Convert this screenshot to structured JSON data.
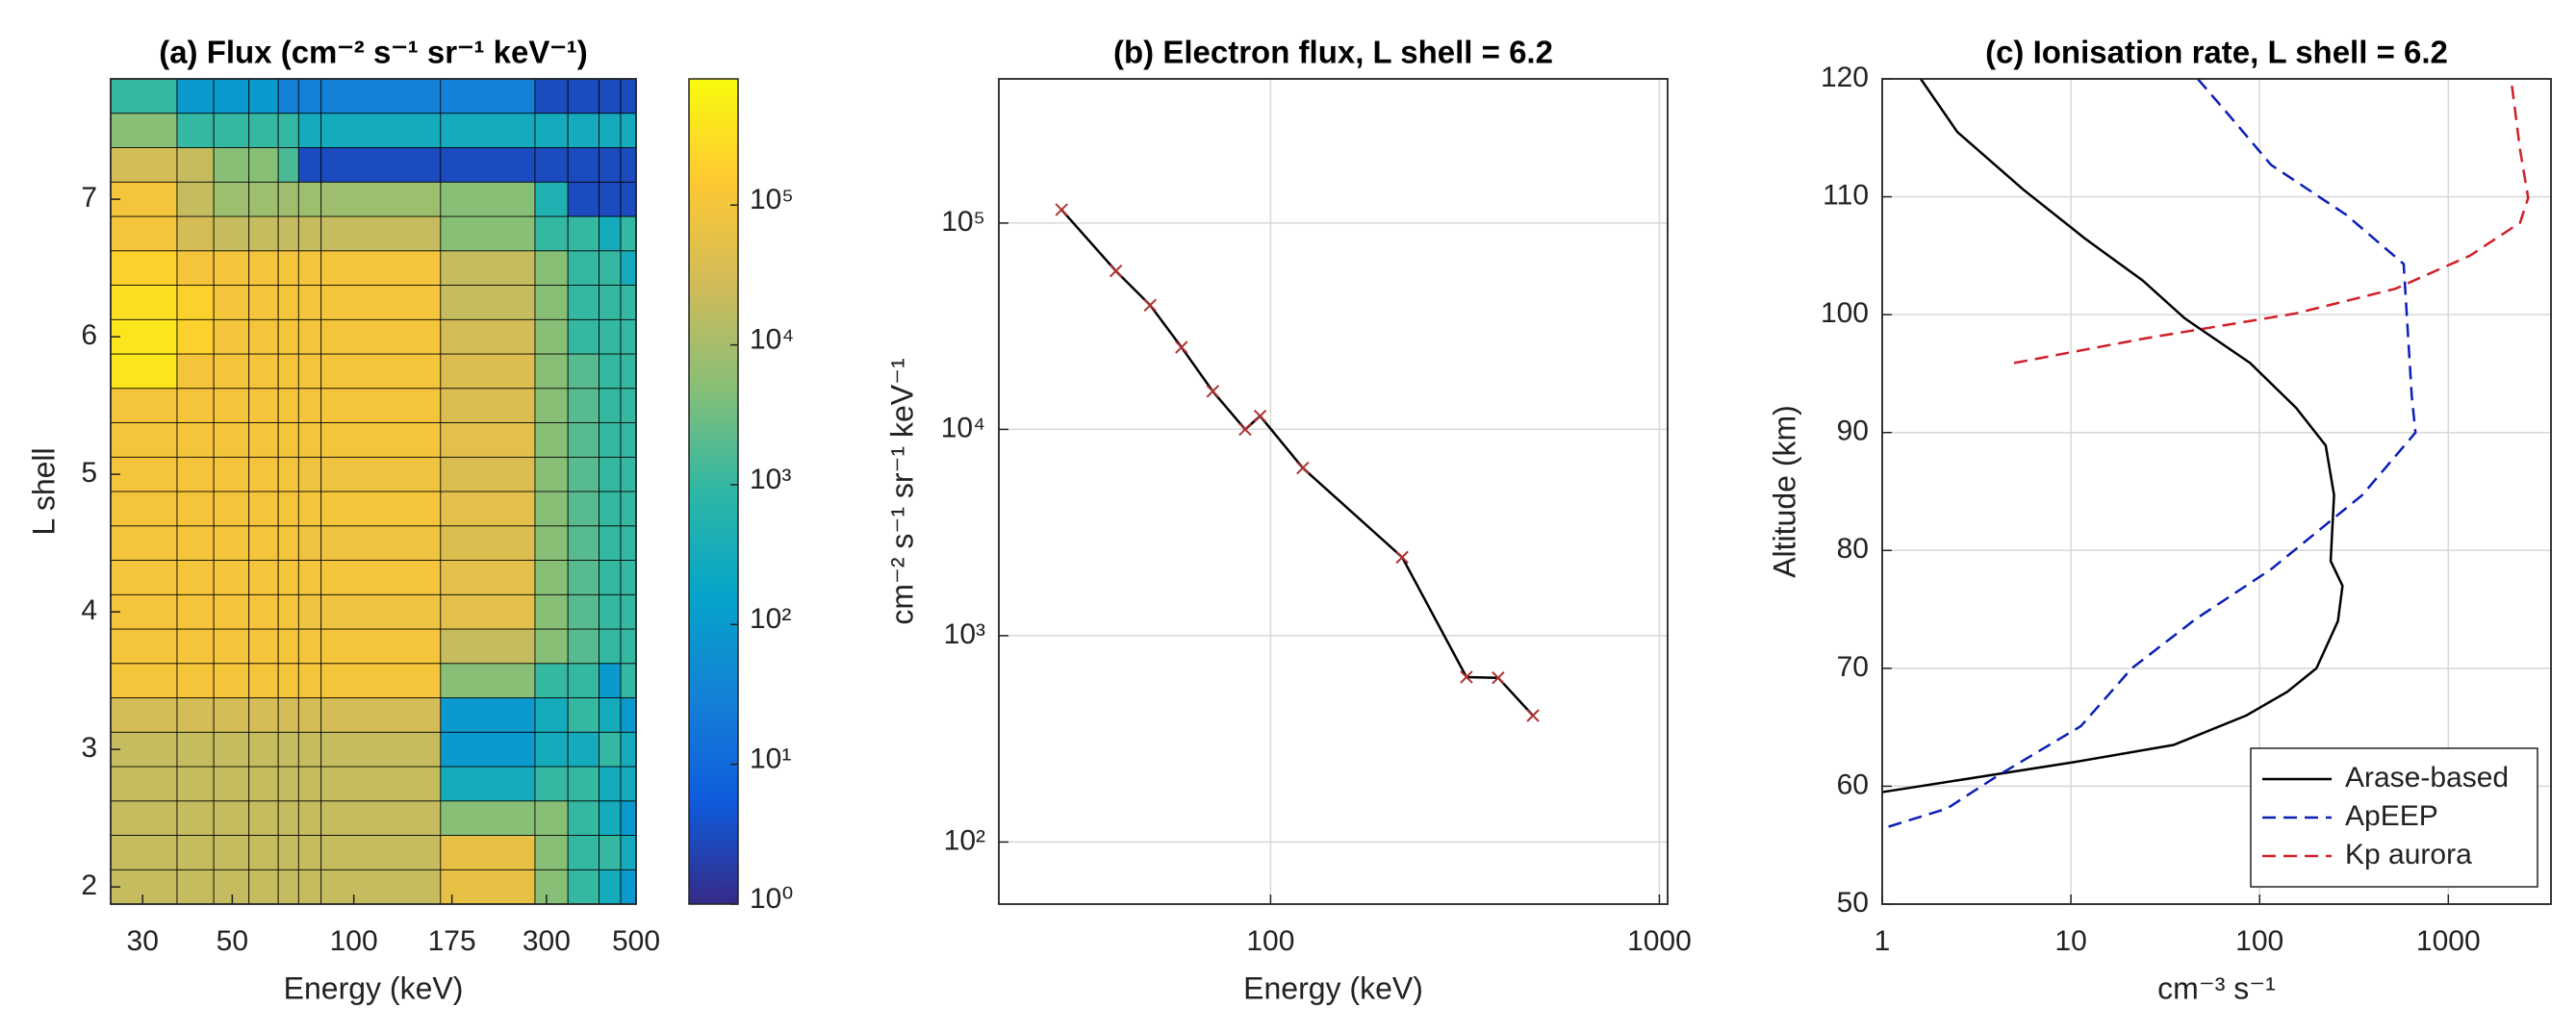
{
  "chart_data": [
    {
      "type": "heatmap",
      "title": "(a) Flux (cm⁻² s⁻¹ sr⁻¹ keV⁻¹)",
      "xlabel": "Energy (keV)",
      "ylabel": "L shell",
      "xscale": "log",
      "xlim": [
        25,
        500
      ],
      "xticks": [
        30,
        50,
        100,
        175,
        300,
        500
      ],
      "ylim": [
        1.875,
        7.875
      ],
      "yticks": [
        2,
        3,
        4,
        5,
        6,
        7
      ],
      "grid": false,
      "x_edges": [
        25,
        36.5,
        45,
        55,
        65,
        73,
        83,
        164,
        281,
        339,
        405,
        458,
        500
      ],
      "y_edges": [
        1.875,
        2.125,
        2.375,
        2.625,
        2.875,
        3.125,
        3.375,
        3.625,
        3.875,
        4.125,
        4.375,
        4.625,
        4.875,
        5.125,
        5.375,
        5.625,
        5.875,
        6.125,
        6.375,
        6.625,
        6.875,
        7.125,
        7.375,
        7.625,
        7.875
      ],
      "colormap": "parula",
      "cscale": "log",
      "clim": [
        1,
        800000
      ],
      "cticks": [
        {
          "value": 1,
          "label": "10⁰"
        },
        {
          "value": 10,
          "label": "10¹"
        },
        {
          "value": 100,
          "label": "10²"
        },
        {
          "value": 1000,
          "label": "10³"
        },
        {
          "value": 10000,
          "label": "10⁴"
        },
        {
          "value": 100000,
          "label": "10⁵"
        }
      ],
      "values": [
        [
          20000,
          20000,
          20000,
          20000,
          20000,
          20000,
          20000,
          60000,
          5000,
          1000,
          300,
          100
        ],
        [
          20000,
          20000,
          20000,
          20000,
          20000,
          20000,
          20000,
          60000,
          5000,
          1000,
          1000,
          300
        ],
        [
          20000,
          20000,
          20000,
          20000,
          20000,
          20000,
          20000,
          5000,
          5000,
          1000,
          300,
          100
        ],
        [
          20000,
          20000,
          20000,
          20000,
          20000,
          20000,
          20000,
          300,
          1000,
          1000,
          300,
          300
        ],
        [
          20000,
          20000,
          20000,
          20000,
          20000,
          20000,
          20000,
          100,
          300,
          300,
          1000,
          300
        ],
        [
          30000,
          30000,
          30000,
          30000,
          30000,
          30000,
          30000,
          100,
          300,
          1000,
          300,
          100
        ],
        [
          100000,
          100000,
          100000,
          100000,
          100000,
          100000,
          100000,
          5000,
          1000,
          1000,
          100,
          1000
        ],
        [
          100000,
          100000,
          100000,
          100000,
          100000,
          100000,
          100000,
          20000,
          5000,
          2000,
          1000,
          1000
        ],
        [
          100000,
          100000,
          100000,
          100000,
          100000,
          80000,
          80000,
          50000,
          5000,
          2000,
          1000,
          1000
        ],
        [
          100000,
          100000,
          100000,
          100000,
          100000,
          100000,
          100000,
          50000,
          5000,
          2000,
          1000,
          1000
        ],
        [
          100000,
          100000,
          100000,
          100000,
          100000,
          80000,
          80000,
          40000,
          5000,
          2000,
          1000,
          1000
        ],
        [
          100000,
          100000,
          100000,
          100000,
          100000,
          100000,
          100000,
          50000,
          5000,
          2000,
          1000,
          1000
        ],
        [
          100000,
          100000,
          100000,
          100000,
          100000,
          80000,
          80000,
          40000,
          5000,
          2000,
          1000,
          1000
        ],
        [
          100000,
          100000,
          100000,
          100000,
          100000,
          100000,
          100000,
          50000,
          5000,
          2000,
          1000,
          1000
        ],
        [
          100000,
          100000,
          100000,
          100000,
          100000,
          100000,
          100000,
          40000,
          5000,
          2000,
          1000,
          1000
        ],
        [
          400000,
          100000,
          100000,
          100000,
          100000,
          100000,
          100000,
          40000,
          5000,
          2000,
          1000,
          1000
        ],
        [
          400000,
          200000,
          100000,
          100000,
          100000,
          100000,
          100000,
          30000,
          5000,
          1000,
          1000,
          1000
        ],
        [
          300000,
          200000,
          100000,
          100000,
          100000,
          100000,
          100000,
          20000,
          5000,
          1000,
          1000,
          1000
        ],
        [
          200000,
          100000,
          100000,
          100000,
          100000,
          100000,
          100000,
          20000,
          5000,
          1000,
          1000,
          300
        ],
        [
          100000,
          30000,
          20000,
          20000,
          20000,
          20000,
          20000,
          5000,
          1000,
          1000,
          300,
          1000
        ],
        [
          100000,
          20000,
          8000,
          8000,
          8000,
          8000,
          8000,
          5000,
          500,
          3,
          3,
          3
        ],
        [
          30000,
          20000,
          5000,
          5000,
          1500,
          3,
          3,
          3,
          3,
          3,
          3,
          3
        ],
        [
          5000,
          1000,
          1000,
          1000,
          1000,
          300,
          300,
          300,
          300,
          300,
          300,
          300
        ],
        [
          1000,
          100,
          100,
          100,
          30,
          30,
          30,
          30,
          3,
          3,
          3,
          3
        ]
      ]
    },
    {
      "type": "line",
      "title": "(b) Electron flux, L shell = 6.2",
      "xlabel": "Energy (keV)",
      "ylabel": "cm⁻² s⁻¹ sr⁻¹ keV⁻¹",
      "xscale": "log",
      "yscale": "log",
      "xlim": [
        20,
        1050
      ],
      "ylim": [
        50,
        500000
      ],
      "grid": true,
      "xticks": [
        100,
        1000
      ],
      "yticks": [
        {
          "value": 100,
          "label": "10²"
        },
        {
          "value": 1000,
          "label": "10³"
        },
        {
          "value": 10000,
          "label": "10⁴"
        },
        {
          "value": 100000,
          "label": "10⁵"
        }
      ],
      "x": [
        29,
        40,
        49,
        59,
        71,
        86,
        94,
        121,
        218,
        319,
        385,
        473
      ],
      "series": [
        {
          "color": "#000000",
          "marker": "x",
          "marker_color": "#b03030",
          "values": [
            116000,
            58600,
            40000,
            25000,
            15300,
            10000,
            11600,
            6500,
            2400,
            630,
            625,
            410
          ]
        }
      ]
    },
    {
      "type": "line",
      "title": "(c) Ionisation rate, L shell = 6.2",
      "xlabel": "cm⁻³ s⁻¹",
      "ylabel": "Altitude (km)",
      "xscale": "log",
      "xlim": [
        1,
        3500
      ],
      "ylim": [
        50,
        120
      ],
      "grid": true,
      "legend": "lower right",
      "xticks": [
        1,
        10,
        100,
        1000
      ],
      "yticks": [
        50,
        60,
        70,
        80,
        90,
        100,
        110,
        120
      ],
      "series": [
        {
          "name": "Arase-based",
          "color": "#000000",
          "linestyle": "solid",
          "x": [
            1.6,
            2.5,
            5.6,
            12,
            24,
            40,
            89,
            156,
            224,
            248,
            238,
            275,
            260,
            200,
            140,
            85,
            35,
            10,
            1
          ],
          "values": [
            120,
            115.5,
            110.6,
            106.4,
            102.9,
            99.7,
            95.9,
            92.1,
            88.9,
            84.7,
            79.1,
            77,
            74,
            70,
            68,
            66,
            63.5,
            62,
            59.5
          ]
        },
        {
          "name": "ApEEP",
          "color": "#0a1fb5",
          "linestyle": "dashed",
          "x": [
            47,
            69,
            115,
            286,
            580,
            640,
            670,
            350,
            115,
            46,
            21,
            11.3,
            4.1,
            2.2,
            1
          ],
          "values": [
            120,
            116.9,
            112.7,
            108.5,
            104.3,
            93.1,
            90,
            84.7,
            78.4,
            74.2,
            70,
            65.1,
            60.9,
            58.1,
            56.4
          ]
        },
        {
          "name": "Kp aurora",
          "color": "#d0202a",
          "linestyle": "dashed",
          "x": [
            5,
            25,
            155,
            525,
            1300,
            2400,
            2650,
            2400,
            2150
          ],
          "values": [
            95.9,
            98,
            100.1,
            102.2,
            105,
            107.8,
            109.9,
            114,
            120
          ]
        }
      ]
    }
  ]
}
